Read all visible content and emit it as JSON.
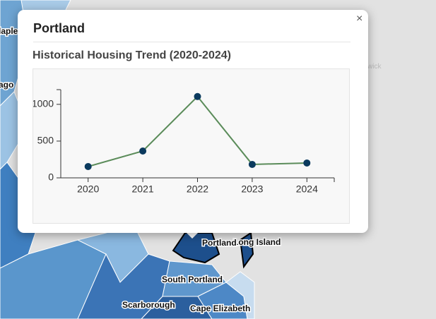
{
  "map": {
    "labels": [
      "laple",
      "ago",
      "wick",
      "Long Island",
      "Portland",
      "South Portland",
      "Scarborough",
      "Cape Elizabeth"
    ]
  },
  "popup": {
    "title": "Portland",
    "close": "×"
  },
  "chart_data": {
    "type": "line",
    "title": "Historical Housing Trend (2020-2024)",
    "categories": [
      "2020",
      "2021",
      "2022",
      "2023",
      "2024"
    ],
    "values": [
      154,
      365,
      1106,
      183,
      202
    ],
    "line_color": "#5b8c5a",
    "marker_color": "#0b3a5e",
    "ylim": [
      0,
      1200
    ],
    "yticks": [
      0,
      500,
      1000
    ]
  }
}
